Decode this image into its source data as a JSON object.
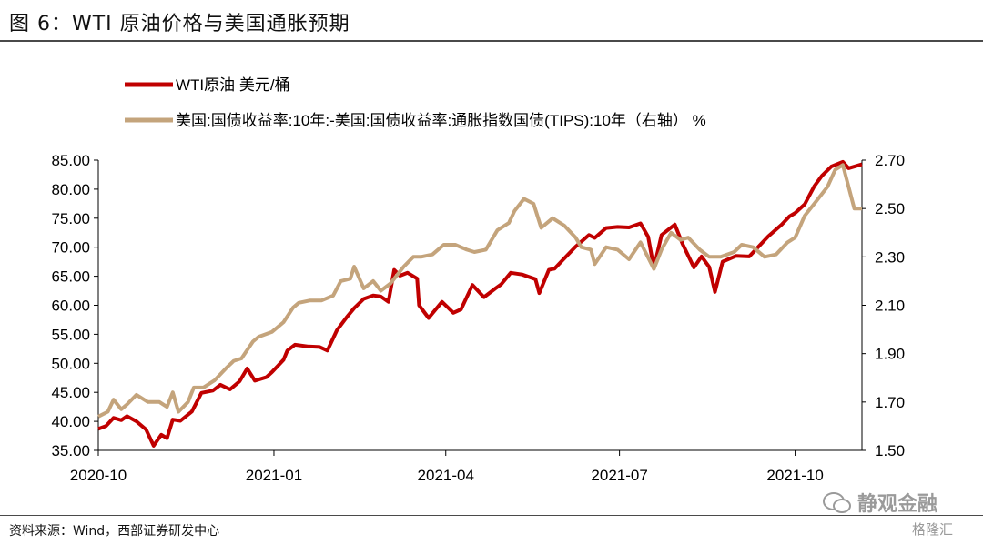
{
  "page": {
    "title": "图 6：WTI 原油价格与美国通胀预期",
    "source": "资料来源：Wind，西部证券研发中心",
    "watermark": "静观金融",
    "watermark_sub": "格隆汇"
  },
  "chart_data": {
    "type": "line",
    "grid": false,
    "legend_position": "top-left",
    "x_ticks": [
      "2020-10",
      "2021-01",
      "2021-04",
      "2021-07",
      "2021-10"
    ],
    "x_range": [
      "2020-10-01",
      "2021-11-05"
    ],
    "left_axis": {
      "ylim": [
        35,
        85
      ],
      "ticks": [
        "85.00",
        "80.00",
        "75.00",
        "70.00",
        "65.00",
        "60.00",
        "55.00",
        "50.00",
        "45.00",
        "40.00",
        "35.00"
      ]
    },
    "right_axis": {
      "ylim": [
        1.5,
        2.7
      ],
      "ticks": [
        "2.70",
        "2.50",
        "2.30",
        "2.10",
        "1.90",
        "1.70",
        "1.50"
      ]
    },
    "series": [
      {
        "name": "WTI原油 美元/桶",
        "axis": "left",
        "color": "#c00000",
        "points": [
          [
            "2020-10-01",
            38.7
          ],
          [
            "2020-10-05",
            39.2
          ],
          [
            "2020-10-09",
            40.6
          ],
          [
            "2020-10-13",
            40.2
          ],
          [
            "2020-10-16",
            40.9
          ],
          [
            "2020-10-21",
            40.0
          ],
          [
            "2020-10-26",
            38.6
          ],
          [
            "2020-10-30",
            35.8
          ],
          [
            "2020-11-03",
            37.7
          ],
          [
            "2020-11-06",
            37.1
          ],
          [
            "2020-11-09",
            40.3
          ],
          [
            "2020-11-13",
            40.1
          ],
          [
            "2020-11-19",
            41.7
          ],
          [
            "2020-11-24",
            44.9
          ],
          [
            "2020-11-30",
            45.3
          ],
          [
            "2020-12-04",
            46.3
          ],
          [
            "2020-12-09",
            45.5
          ],
          [
            "2020-12-14",
            46.9
          ],
          [
            "2020-12-18",
            49.1
          ],
          [
            "2020-12-22",
            47.0
          ],
          [
            "2020-12-28",
            47.6
          ],
          [
            "2020-12-31",
            48.5
          ],
          [
            "2021-01-06",
            50.6
          ],
          [
            "2021-01-08",
            52.2
          ],
          [
            "2021-01-12",
            53.2
          ],
          [
            "2021-01-19",
            52.9
          ],
          [
            "2021-01-25",
            52.8
          ],
          [
            "2021-01-29",
            52.2
          ],
          [
            "2021-02-03",
            55.7
          ],
          [
            "2021-02-08",
            57.9
          ],
          [
            "2021-02-12",
            59.5
          ],
          [
            "2021-02-17",
            61.1
          ],
          [
            "2021-02-22",
            61.7
          ],
          [
            "2021-02-26",
            61.5
          ],
          [
            "2021-03-02",
            60.6
          ],
          [
            "2021-03-05",
            66.1
          ],
          [
            "2021-03-08",
            65.1
          ],
          [
            "2021-03-12",
            65.6
          ],
          [
            "2021-03-17",
            64.6
          ],
          [
            "2021-03-18",
            60.0
          ],
          [
            "2021-03-23",
            57.8
          ],
          [
            "2021-03-25",
            58.6
          ],
          [
            "2021-03-30",
            60.6
          ],
          [
            "2021-04-05",
            58.7
          ],
          [
            "2021-04-09",
            59.3
          ],
          [
            "2021-04-15",
            63.5
          ],
          [
            "2021-04-21",
            61.4
          ],
          [
            "2021-04-27",
            62.9
          ],
          [
            "2021-04-30",
            63.6
          ],
          [
            "2021-05-05",
            65.6
          ],
          [
            "2021-05-11",
            65.3
          ],
          [
            "2021-05-18",
            64.5
          ],
          [
            "2021-05-20",
            62.1
          ],
          [
            "2021-05-25",
            66.1
          ],
          [
            "2021-05-28",
            66.3
          ],
          [
            "2021-06-01",
            67.7
          ],
          [
            "2021-06-08",
            70.1
          ],
          [
            "2021-06-15",
            72.1
          ],
          [
            "2021-06-18",
            71.6
          ],
          [
            "2021-06-24",
            73.3
          ],
          [
            "2021-06-30",
            73.5
          ],
          [
            "2021-07-06",
            73.4
          ],
          [
            "2021-07-12",
            74.1
          ],
          [
            "2021-07-16",
            71.8
          ],
          [
            "2021-07-19",
            66.4
          ],
          [
            "2021-07-23",
            72.1
          ],
          [
            "2021-07-30",
            73.9
          ],
          [
            "2021-08-03",
            70.6
          ],
          [
            "2021-08-09",
            66.5
          ],
          [
            "2021-08-13",
            68.4
          ],
          [
            "2021-08-17",
            66.6
          ],
          [
            "2021-08-20",
            62.3
          ],
          [
            "2021-08-24",
            67.5
          ],
          [
            "2021-08-31",
            68.5
          ],
          [
            "2021-09-07",
            68.4
          ],
          [
            "2021-09-13",
            70.5
          ],
          [
            "2021-09-17",
            71.9
          ],
          [
            "2021-09-24",
            73.9
          ],
          [
            "2021-09-28",
            75.3
          ],
          [
            "2021-10-01",
            75.9
          ],
          [
            "2021-10-06",
            77.4
          ],
          [
            "2021-10-11",
            80.5
          ],
          [
            "2021-10-15",
            82.3
          ],
          [
            "2021-10-20",
            83.9
          ],
          [
            "2021-10-26",
            84.7
          ],
          [
            "2021-10-29",
            83.6
          ],
          [
            "2021-11-02",
            84.0
          ],
          [
            "2021-11-05",
            84.3
          ]
        ]
      },
      {
        "name": "美国:国债收益率:10年:-美国:国债收益率:通胀指数国债(TIPS):10年（右轴） %",
        "axis": "right",
        "color": "#c4a47c",
        "points": [
          [
            "2020-10-01",
            1.64
          ],
          [
            "2020-10-06",
            1.66
          ],
          [
            "2020-10-09",
            1.71
          ],
          [
            "2020-10-13",
            1.67
          ],
          [
            "2020-10-16",
            1.69
          ],
          [
            "2020-10-21",
            1.73
          ],
          [
            "2020-10-27",
            1.7
          ],
          [
            "2020-11-02",
            1.7
          ],
          [
            "2020-11-06",
            1.68
          ],
          [
            "2020-11-09",
            1.74
          ],
          [
            "2020-11-12",
            1.66
          ],
          [
            "2020-11-17",
            1.7
          ],
          [
            "2020-11-20",
            1.76
          ],
          [
            "2020-11-25",
            1.76
          ],
          [
            "2020-12-01",
            1.79
          ],
          [
            "2020-12-07",
            1.84
          ],
          [
            "2020-12-11",
            1.87
          ],
          [
            "2020-12-15",
            1.88
          ],
          [
            "2020-12-21",
            1.95
          ],
          [
            "2020-12-24",
            1.97
          ],
          [
            "2020-12-31",
            1.99
          ],
          [
            "2021-01-06",
            2.03
          ],
          [
            "2021-01-11",
            2.09
          ],
          [
            "2021-01-14",
            2.11
          ],
          [
            "2021-01-20",
            2.12
          ],
          [
            "2021-01-26",
            2.12
          ],
          [
            "2021-02-01",
            2.14
          ],
          [
            "2021-02-05",
            2.2
          ],
          [
            "2021-02-10",
            2.21
          ],
          [
            "2021-02-12",
            2.26
          ],
          [
            "2021-02-17",
            2.17
          ],
          [
            "2021-02-22",
            2.2
          ],
          [
            "2021-02-26",
            2.16
          ],
          [
            "2021-03-03",
            2.19
          ],
          [
            "2021-03-10",
            2.26
          ],
          [
            "2021-03-15",
            2.3
          ],
          [
            "2021-03-19",
            2.3
          ],
          [
            "2021-03-25",
            2.31
          ],
          [
            "2021-03-31",
            2.35
          ],
          [
            "2021-04-06",
            2.35
          ],
          [
            "2021-04-12",
            2.33
          ],
          [
            "2021-04-16",
            2.32
          ],
          [
            "2021-04-22",
            2.33
          ],
          [
            "2021-04-28",
            2.41
          ],
          [
            "2021-05-04",
            2.44
          ],
          [
            "2021-05-07",
            2.49
          ],
          [
            "2021-05-12",
            2.54
          ],
          [
            "2021-05-17",
            2.52
          ],
          [
            "2021-05-21",
            2.42
          ],
          [
            "2021-05-27",
            2.46
          ],
          [
            "2021-06-02",
            2.43
          ],
          [
            "2021-06-08",
            2.38
          ],
          [
            "2021-06-11",
            2.34
          ],
          [
            "2021-06-16",
            2.33
          ],
          [
            "2021-06-18",
            2.27
          ],
          [
            "2021-06-24",
            2.34
          ],
          [
            "2021-06-30",
            2.33
          ],
          [
            "2021-07-06",
            2.29
          ],
          [
            "2021-07-12",
            2.36
          ],
          [
            "2021-07-19",
            2.25
          ],
          [
            "2021-07-23",
            2.33
          ],
          [
            "2021-07-28",
            2.4
          ],
          [
            "2021-08-02",
            2.37
          ],
          [
            "2021-08-06",
            2.38
          ],
          [
            "2021-08-12",
            2.33
          ],
          [
            "2021-08-17",
            2.3
          ],
          [
            "2021-08-23",
            2.3
          ],
          [
            "2021-08-30",
            2.32
          ],
          [
            "2021-09-03",
            2.35
          ],
          [
            "2021-09-09",
            2.34
          ],
          [
            "2021-09-15",
            2.3
          ],
          [
            "2021-09-21",
            2.31
          ],
          [
            "2021-09-27",
            2.36
          ],
          [
            "2021-10-01",
            2.38
          ],
          [
            "2021-10-06",
            2.47
          ],
          [
            "2021-10-12",
            2.53
          ],
          [
            "2021-10-18",
            2.59
          ],
          [
            "2021-10-22",
            2.66
          ],
          [
            "2021-10-26",
            2.68
          ],
          [
            "2021-10-28",
            2.62
          ],
          [
            "2021-11-01",
            2.5
          ],
          [
            "2021-11-05",
            2.5
          ]
        ]
      }
    ]
  }
}
